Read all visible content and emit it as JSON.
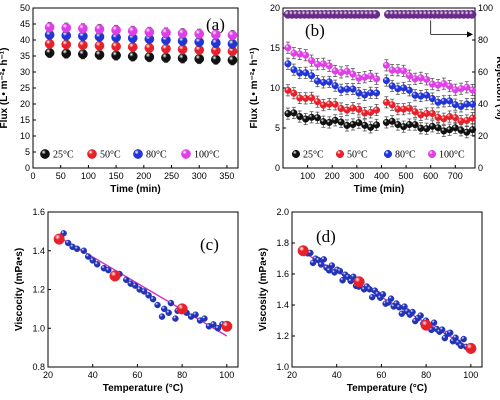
{
  "chart_data": [
    {
      "panel": "(a)",
      "type": "scatter",
      "xlabel": "Time (min)",
      "ylabel": "Flux (L• m⁻²• h⁻¹)",
      "xlim": [
        0,
        370
      ],
      "ylim": [
        0,
        50
      ],
      "xticks": [
        0,
        50,
        100,
        150,
        200,
        250,
        300,
        350
      ],
      "yticks": [
        0,
        5,
        10,
        15,
        20,
        25,
        30,
        35,
        40,
        45,
        50
      ],
      "legend_position": "bottom",
      "x": [
        30,
        60,
        90,
        120,
        150,
        180,
        210,
        240,
        270,
        300,
        330,
        360
      ],
      "series": [
        {
          "name": "25°C",
          "color": "#111111",
          "values": [
            36.0,
            35.8,
            35.6,
            35.4,
            35.2,
            34.9,
            34.7,
            34.5,
            34.3,
            34.1,
            33.9,
            33.7
          ],
          "error": 1.5
        },
        {
          "name": "50°C",
          "color": "#e8202a",
          "values": [
            38.8,
            38.6,
            38.4,
            38.2,
            38.0,
            37.8,
            37.5,
            37.3,
            37.1,
            36.9,
            36.7,
            36.5
          ],
          "error": 1.5
        },
        {
          "name": "80°C",
          "color": "#2233d8",
          "values": [
            41.6,
            41.4,
            41.2,
            41.0,
            40.8,
            40.6,
            40.3,
            40.0,
            39.7,
            39.4,
            39.1,
            38.8
          ],
          "error": 1.5
        },
        {
          "name": "100°C",
          "color": "#e03ee8",
          "values": [
            44.0,
            43.8,
            43.6,
            43.4,
            43.1,
            42.8,
            42.5,
            42.3,
            42.1,
            41.9,
            41.7,
            41.5
          ],
          "error": 1.5
        }
      ]
    },
    {
      "panel": "(b)",
      "type": "scatter",
      "xlabel": "Time (min)",
      "ylabel": "Flux (L• m⁻²• h⁻¹)",
      "y2label": "Rejection (%)",
      "xlim": [
        0,
        780
      ],
      "ylim": [
        0,
        20
      ],
      "y2lim": [
        0,
        100
      ],
      "xticks": [
        100,
        200,
        300,
        400,
        500,
        600,
        700
      ],
      "yticks": [
        0,
        5,
        10,
        15,
        20
      ],
      "y2ticks": [
        0,
        20,
        40,
        60,
        80,
        100
      ],
      "legend_position": "bottom",
      "rejection": {
        "value": 96,
        "x_start": 20,
        "x_end": 770,
        "gap": [
          380,
          420
        ],
        "color": "#6a2a8a"
      },
      "segments": [
        [
          20,
          380
        ],
        [
          420,
          770
        ]
      ],
      "series": [
        {
          "name": "25°C",
          "color": "#111111",
          "start": [
            6.8,
            5.7
          ],
          "end": [
            5.3,
            4.7
          ]
        },
        {
          "name": "50°C",
          "color": "#e8202a",
          "start": [
            9.5,
            8.0
          ],
          "end": [
            7.0,
            6.0
          ]
        },
        {
          "name": "80°C",
          "color": "#2233d8",
          "start": [
            12.8,
            10.7
          ],
          "end": [
            9.2,
            7.8
          ]
        },
        {
          "name": "100°C",
          "color": "#e03ee8",
          "start": [
            15.0,
            12.8
          ],
          "end": [
            11.2,
            9.8
          ]
        }
      ]
    },
    {
      "panel": "(c)",
      "type": "scatter",
      "xlabel": "Temperature (°C)",
      "ylabel": "Viscocity (mPa•s)",
      "xlim": [
        20,
        105
      ],
      "ylim": [
        0.8,
        1.6
      ],
      "xticks": [
        20,
        40,
        60,
        80,
        100
      ],
      "yticks": [
        0.8,
        1.0,
        1.2,
        1.4,
        1.6
      ],
      "fit_line": {
        "x": [
          25,
          100
        ],
        "y": [
          1.47,
          0.96
        ],
        "color": "#cc33cc"
      },
      "reference_points": {
        "color": "#e8202a",
        "x": [
          25,
          50,
          80,
          100
        ],
        "y": [
          1.46,
          1.27,
          1.1,
          1.01
        ]
      },
      "measured_points": {
        "color": "#2233b8",
        "x": [
          27,
          29,
          31,
          33,
          36,
          38,
          40,
          42,
          45,
          47,
          50,
          52,
          55,
          57,
          59,
          61,
          63,
          65,
          67,
          69,
          71,
          72,
          74,
          75,
          77,
          78,
          80,
          82,
          84,
          86,
          88,
          90,
          92,
          94,
          96,
          98
        ],
        "y": [
          1.49,
          1.44,
          1.42,
          1.41,
          1.4,
          1.37,
          1.35,
          1.33,
          1.31,
          1.3,
          1.27,
          1.28,
          1.25,
          1.23,
          1.22,
          1.2,
          1.19,
          1.17,
          1.15,
          1.12,
          1.06,
          1.1,
          1.08,
          1.13,
          1.05,
          1.09,
          1.1,
          1.08,
          1.06,
          1.07,
          1.04,
          1.05,
          1.01,
          1.02,
          1.0,
          1.02
        ]
      }
    },
    {
      "panel": "(d)",
      "type": "scatter",
      "xlabel": "Temperature (°C)",
      "ylabel": "Viscosity (mPa•s)",
      "xlim": [
        20,
        105
      ],
      "ylim": [
        1.0,
        2.0
      ],
      "xticks": [
        20,
        40,
        60,
        80,
        100
      ],
      "yticks": [
        1.0,
        1.2,
        1.4,
        1.6,
        1.8,
        2.0
      ],
      "fit_line": {
        "x": [
          25,
          100
        ],
        "y": [
          1.74,
          1.12
        ],
        "color": "#cc33cc"
      },
      "reference_points": {
        "color": "#e8202a",
        "x": [
          25,
          50,
          80,
          100
        ],
        "y": [
          1.75,
          1.55,
          1.27,
          1.12
        ]
      },
      "measured_points": {
        "color": "#2233b8",
        "x_start": 27,
        "x_end": 98,
        "count": 60,
        "scatter": 0.025
      }
    }
  ]
}
